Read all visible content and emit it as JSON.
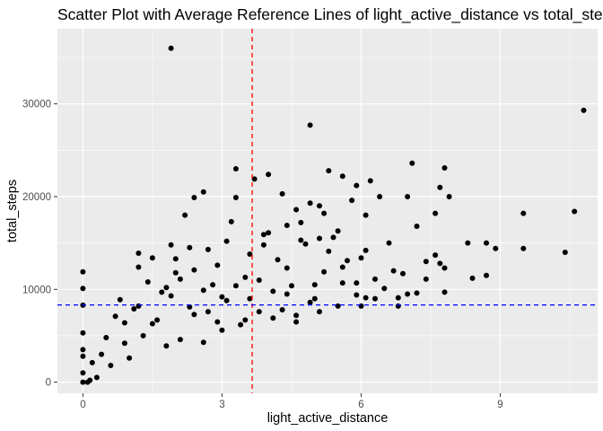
{
  "chart_data": {
    "type": "scatter",
    "title": "Scatter Plot with Average Reference Lines of light_active_distance vs total_steps",
    "xlabel": "light_active_distance",
    "ylabel": "total_steps",
    "xlim": [
      -0.55,
      11.1
    ],
    "ylim": [
      -1200,
      38100
    ],
    "x_ticks": [
      0,
      3,
      6,
      9
    ],
    "x_tick_labels": [
      "0",
      "3",
      "6",
      "9"
    ],
    "y_ticks": [
      0,
      10000,
      20000,
      30000
    ],
    "y_tick_labels": [
      "0",
      "10000",
      "20000",
      "30000"
    ],
    "grid": true,
    "legend": "none",
    "colors": {
      "panel": "#ebebeb",
      "grid_major": "#ffffff",
      "points": "#000000",
      "vline": "#ff0000",
      "hline": "#0000ff"
    },
    "reference_lines": [
      {
        "orientation": "vertical",
        "value": 3.65,
        "style": "dashed",
        "color": "#ff0000"
      },
      {
        "orientation": "horizontal",
        "value": 8320,
        "style": "dashed",
        "color": "#0000ff"
      }
    ],
    "points": [
      [
        1.9,
        36000
      ],
      [
        4.9,
        27700
      ],
      [
        10.8,
        29300
      ],
      [
        7.1,
        23600
      ],
      [
        7.8,
        23100
      ],
      [
        3.3,
        23000
      ],
      [
        5.3,
        22800
      ],
      [
        4.0,
        22400
      ],
      [
        5.6,
        22200
      ],
      [
        3.7,
        21900
      ],
      [
        6.2,
        21700
      ],
      [
        7.7,
        21000
      ],
      [
        5.9,
        21200
      ],
      [
        2.6,
        20500
      ],
      [
        4.3,
        20300
      ],
      [
        7.9,
        20000
      ],
      [
        7.0,
        20000
      ],
      [
        6.4,
        20000
      ],
      [
        2.4,
        19900
      ],
      [
        3.3,
        19900
      ],
      [
        5.8,
        19600
      ],
      [
        4.9,
        19300
      ],
      [
        5.1,
        19000
      ],
      [
        4.6,
        18600
      ],
      [
        5.2,
        18200
      ],
      [
        9.5,
        18200
      ],
      [
        10.6,
        18400
      ],
      [
        7.6,
        18200
      ],
      [
        2.2,
        18000
      ],
      [
        6.1,
        18000
      ],
      [
        3.2,
        17300
      ],
      [
        4.4,
        16900
      ],
      [
        7.2,
        16800
      ],
      [
        5.5,
        16300
      ],
      [
        3.9,
        15900
      ],
      [
        5.1,
        15500
      ],
      [
        4.7,
        15300
      ],
      [
        6.6,
        15000
      ],
      [
        8.3,
        15000
      ],
      [
        8.7,
        15000
      ],
      [
        1.9,
        14800
      ],
      [
        2.7,
        14300
      ],
      [
        9.5,
        14400
      ],
      [
        8.9,
        14400
      ],
      [
        10.4,
        14000
      ],
      [
        1.2,
        13900
      ],
      [
        7.6,
        13700
      ],
      [
        1.5,
        13400
      ],
      [
        4.2,
        13200
      ],
      [
        5.7,
        13100
      ],
      [
        7.7,
        12800
      ],
      [
        1.2,
        12400
      ],
      [
        7.8,
        12300
      ],
      [
        0.0,
        11900
      ],
      [
        2.0,
        11800
      ],
      [
        3.5,
        11300
      ],
      [
        8.4,
        11200
      ],
      [
        8.7,
        11500
      ],
      [
        7.4,
        11100
      ],
      [
        5.9,
        10700
      ],
      [
        6.3,
        11100
      ],
      [
        1.4,
        10800
      ],
      [
        2.8,
        10500
      ],
      [
        4.5,
        10400
      ],
      [
        0.0,
        10100
      ],
      [
        7.2,
        9600
      ],
      [
        7.8,
        9700
      ],
      [
        1.9,
        9300
      ],
      [
        0.8,
        8900
      ],
      [
        3.1,
        8800
      ],
      [
        5.0,
        9000
      ],
      [
        6.8,
        9100
      ],
      [
        0.0,
        8300
      ],
      [
        2.3,
        8100
      ],
      [
        1.1,
        7900
      ],
      [
        3.8,
        7600
      ],
      [
        6.0,
        8200
      ],
      [
        0.7,
        7100
      ],
      [
        4.6,
        7200
      ],
      [
        1.6,
        6700
      ],
      [
        2.9,
        6500
      ],
      [
        3.4,
        6200
      ],
      [
        0.0,
        5300
      ],
      [
        0.5,
        4800
      ],
      [
        1.3,
        5000
      ],
      [
        2.1,
        4600
      ],
      [
        0.9,
        4200
      ],
      [
        0.0,
        3500
      ],
      [
        0.4,
        3000
      ],
      [
        1.8,
        3900
      ],
      [
        2.6,
        4300
      ],
      [
        0.0,
        2800
      ],
      [
        0.2,
        2100
      ],
      [
        0.6,
        1800
      ],
      [
        1.0,
        2600
      ],
      [
        0.0,
        1000
      ],
      [
        0.3,
        500
      ],
      [
        0.1,
        0
      ],
      [
        0.0,
        0
      ],
      [
        0.15,
        200
      ],
      [
        6.7,
        12000
      ],
      [
        7.4,
        13000
      ],
      [
        6.1,
        14200
      ],
      [
        5.4,
        15600
      ],
      [
        2.4,
        12100
      ],
      [
        4.8,
        14900
      ],
      [
        3.6,
        13800
      ],
      [
        2.1,
        11100
      ],
      [
        6.9,
        11700
      ],
      [
        5.6,
        10700
      ],
      [
        4.1,
        9800
      ],
      [
        3.0,
        9200
      ],
      [
        2.6,
        9900
      ],
      [
        1.7,
        9700
      ],
      [
        6.5,
        10100
      ],
      [
        7.0,
        9500
      ],
      [
        5.2,
        11900
      ],
      [
        4.4,
        12300
      ],
      [
        3.8,
        11000
      ],
      [
        2.9,
        12600
      ],
      [
        2.3,
        14500
      ],
      [
        3.1,
        15200
      ],
      [
        4.0,
        16100
      ],
      [
        4.7,
        17200
      ],
      [
        5.3,
        14100
      ],
      [
        6.0,
        13400
      ],
      [
        5.9,
        9400
      ],
      [
        6.3,
        9000
      ],
      [
        4.9,
        8600
      ],
      [
        2.0,
        13300
      ],
      [
        1.8,
        10200
      ],
      [
        2.7,
        7600
      ],
      [
        3.3,
        10400
      ],
      [
        4.3,
        7800
      ],
      [
        5.6,
        12400
      ],
      [
        3.9,
        14800
      ],
      [
        3.0,
        5600
      ],
      [
        3.5,
        6700
      ],
      [
        4.1,
        6900
      ],
      [
        4.6,
        6500
      ],
      [
        5.1,
        7600
      ],
      [
        5.5,
        8200
      ],
      [
        6.1,
        9100
      ],
      [
        1.2,
        8200
      ],
      [
        0.9,
        6400
      ],
      [
        1.5,
        6300
      ],
      [
        2.4,
        7300
      ],
      [
        3.6,
        9000
      ],
      [
        6.8,
        8200
      ],
      [
        4.4,
        9500
      ],
      [
        5.0,
        10500
      ]
    ]
  }
}
